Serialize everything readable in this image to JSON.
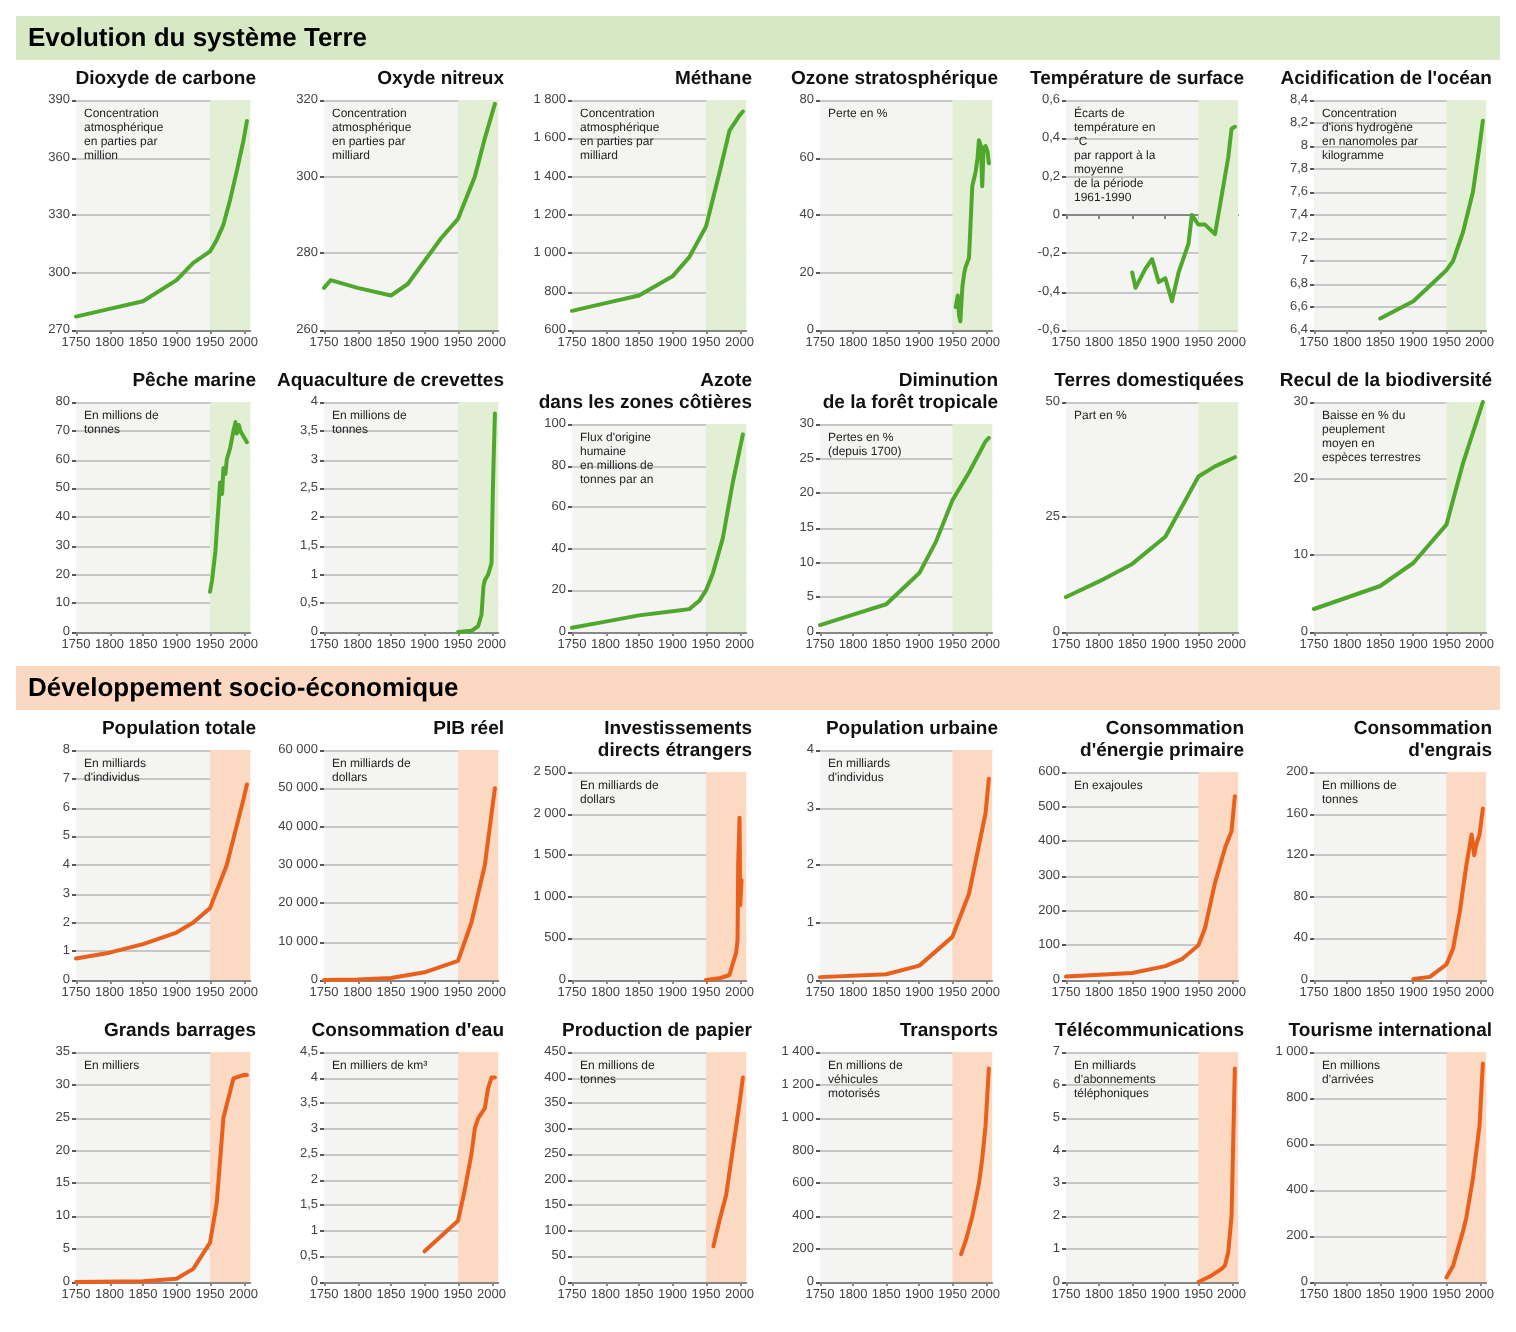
{
  "chart_data": [
    {
      "type": "other",
      "title": "Evolution du système Terre",
      "color": "#d6e8c4"
    },
    {
      "type": "line",
      "title": "Dioxyde de carbone",
      "subtitle": "Concentration atmosphérique\nen parties par million",
      "x": [
        1750,
        1800,
        1850,
        1900,
        1925,
        1950,
        1960,
        1970,
        1980,
        1990,
        2000,
        2005
      ],
      "values": [
        277,
        281,
        285,
        296,
        305,
        311,
        317,
        325,
        338,
        353,
        369,
        379
      ],
      "color": "#4fa82b",
      "xlim": [
        1750,
        2010
      ],
      "xticks": [
        1750,
        1800,
        1850,
        1900,
        1950,
        2000
      ],
      "ylim": [
        270,
        390
      ],
      "yticks": [
        270,
        300,
        330,
        360,
        390
      ],
      "grid": "y",
      "bands": [
        {
          "axis": "x",
          "from": 1950,
          "to": 2010,
          "color": "#e2efd5"
        }
      ]
    },
    {
      "type": "line",
      "title": "Oxyde nitreux",
      "subtitle": "Concentration atmosphérique\nen parties par milliard",
      "x": [
        1750,
        1760,
        1800,
        1850,
        1875,
        1900,
        1925,
        1950,
        1975,
        1990,
        2005
      ],
      "values": [
        271,
        273,
        271,
        269,
        272,
        278,
        284,
        289,
        300,
        310,
        319
      ],
      "color": "#4fa82b",
      "xlim": [
        1750,
        2010
      ],
      "xticks": [
        1750,
        1800,
        1850,
        1900,
        1950,
        2000
      ],
      "ylim": [
        260,
        320
      ],
      "yticks": [
        260,
        280,
        300,
        320
      ],
      "grid": "y",
      "bands": [
        {
          "axis": "x",
          "from": 1950,
          "to": 2010,
          "color": "#e2efd5"
        }
      ]
    },
    {
      "type": "line",
      "title": "Méthane",
      "subtitle": "Concentration atmosphérique\nen parties par milliard",
      "x": [
        1750,
        1800,
        1850,
        1900,
        1925,
        1950,
        1970,
        1985,
        2000,
        2005
      ],
      "values": [
        700,
        740,
        780,
        880,
        980,
        1140,
        1420,
        1640,
        1720,
        1740
      ],
      "color": "#4fa82b",
      "xlim": [
        1750,
        2010
      ],
      "xticks": [
        1750,
        1800,
        1850,
        1900,
        1950,
        2000
      ],
      "ylim": [
        600,
        1800
      ],
      "yticks": [
        600,
        800,
        {
          "value": 1000,
          "label": "1 000"
        },
        {
          "value": 1200,
          "label": "1 200"
        },
        {
          "value": 1400,
          "label": "1 400"
        },
        {
          "value": 1600,
          "label": "1 600"
        },
        {
          "value": 1800,
          "label": "1 800"
        }
      ],
      "grid": "y",
      "bands": [
        {
          "axis": "x",
          "from": 1950,
          "to": 2010,
          "color": "#e2efd5"
        }
      ]
    },
    {
      "type": "line",
      "title": "Ozone stratosphérique",
      "subtitle": "Perte en %",
      "x": [
        1955,
        1958,
        1960,
        1962,
        1965,
        1968,
        1970,
        1975,
        1980,
        1985,
        1988,
        1990,
        1993,
        1995,
        1997,
        2000,
        2003,
        2005
      ],
      "values": [
        8,
        12,
        5,
        3,
        15,
        20,
        22,
        25,
        50,
        55,
        60,
        66,
        64,
        50,
        63,
        64,
        62,
        58
      ],
      "color": "#4fa82b",
      "xlim": [
        1750,
        2010
      ],
      "xticks": [
        1750,
        1800,
        1850,
        1900,
        1950,
        2000
      ],
      "ylim": [
        0,
        80
      ],
      "yticks": [
        0,
        20,
        40,
        60,
        80
      ],
      "grid": "y",
      "bands": [
        {
          "axis": "x",
          "from": 1950,
          "to": 2010,
          "color": "#e2efd5"
        }
      ]
    },
    {
      "type": "line",
      "title": "Température de surface",
      "subtitle": "Écarts de température en °C\npar rapport à la moyenne\nde la période 1961-1990",
      "x": [
        1850,
        1855,
        1870,
        1880,
        1890,
        1900,
        1910,
        1920,
        1935,
        1940,
        1950,
        1960,
        1975,
        1985,
        1995,
        2000,
        2005
      ],
      "values": [
        -0.3,
        -0.38,
        -0.28,
        -0.23,
        -0.35,
        -0.33,
        -0.45,
        -0.3,
        -0.15,
        0,
        -0.05,
        -0.05,
        -0.1,
        0.1,
        0.3,
        0.45,
        0.46
      ],
      "color": "#4fa82b",
      "xlim": [
        1750,
        2010
      ],
      "xticks": [
        1750,
        1800,
        1850,
        1900,
        1950,
        2000
      ],
      "ylim": [
        -0.6,
        0.6
      ],
      "yticks": [
        {
          "value": -0.6,
          "label": "-0,6"
        },
        {
          "value": -0.4,
          "label": "-0,4"
        },
        {
          "value": -0.2,
          "label": "-0,2"
        },
        0,
        {
          "value": 0.2,
          "label": "0,2"
        },
        {
          "value": 0.4,
          "label": "0,4"
        },
        {
          "value": 0.6,
          "label": "0,6"
        }
      ],
      "grid": "y",
      "bands": [
        {
          "axis": "x",
          "from": 1950,
          "to": 2010,
          "color": "#e2efd5"
        }
      ]
    },
    {
      "type": "line",
      "title": "Acidification de l'océan",
      "subtitle": "Concentration d'ions hydrogène\nen nanomoles par kilogramme",
      "x": [
        1850,
        1900,
        1950,
        1960,
        1975,
        1990,
        2000,
        2005
      ],
      "values": [
        6.5,
        6.65,
        6.92,
        7.0,
        7.25,
        7.6,
        8.0,
        8.22
      ],
      "color": "#4fa82b",
      "xlim": [
        1750,
        2010
      ],
      "xticks": [
        1750,
        1800,
        1850,
        1900,
        1950,
        2000
      ],
      "ylim": [
        6.4,
        8.4
      ],
      "yticks": [
        {
          "value": 6.4,
          "label": "6,4"
        },
        {
          "value": 6.6,
          "label": "6,6"
        },
        {
          "value": 6.8,
          "label": "6,8"
        },
        7,
        {
          "value": 7.2,
          "label": "7,2"
        },
        {
          "value": 7.4,
          "label": "7,4"
        },
        {
          "value": 7.6,
          "label": "7,6"
        },
        {
          "value": 7.8,
          "label": "7,8"
        },
        8,
        {
          "value": 8.2,
          "label": "8,2"
        },
        {
          "value": 8.4,
          "label": "8,4"
        }
      ],
      "grid": "y",
      "bands": [
        {
          "axis": "x",
          "from": 1950,
          "to": 2010,
          "color": "#e2efd5"
        }
      ]
    },
    {
      "type": "line",
      "title": "Pêche marine",
      "subtitle": "En millions de tonnes",
      "x": [
        1950,
        1953,
        1955,
        1958,
        1960,
        1963,
        1965,
        1968,
        1970,
        1973,
        1975,
        1980,
        1985,
        1988,
        1990,
        1993,
        1995,
        2000,
        2005
      ],
      "values": [
        14,
        18,
        22,
        28,
        35,
        45,
        52,
        48,
        57,
        55,
        60,
        64,
        70,
        73,
        69,
        72,
        70,
        68,
        66
      ],
      "color": "#4fa82b",
      "xlim": [
        1750,
        2010
      ],
      "xticks": [
        1750,
        1800,
        1850,
        1900,
        1950,
        2000
      ],
      "ylim": [
        0,
        80
      ],
      "yticks": [
        0,
        10,
        20,
        30,
        40,
        50,
        60,
        70,
        80
      ],
      "grid": "y",
      "bands": [
        {
          "axis": "x",
          "from": 1950,
          "to": 2010,
          "color": "#e2efd5"
        }
      ]
    },
    {
      "type": "line",
      "title": "Aquaculture de crevettes",
      "subtitle": "En millions de tonnes",
      "x": [
        1950,
        1970,
        1980,
        1985,
        1988,
        1990,
        1995,
        2000,
        2002,
        2005
      ],
      "values": [
        0,
        0.02,
        0.1,
        0.3,
        0.8,
        0.9,
        1.0,
        1.2,
        2.5,
        3.8
      ],
      "color": "#4fa82b",
      "xlim": [
        1750,
        2010
      ],
      "xticks": [
        1750,
        1800,
        1850,
        1900,
        1950,
        2000
      ],
      "ylim": [
        0,
        4
      ],
      "yticks": [
        0,
        {
          "value": 0.5,
          "label": "0,5"
        },
        1,
        {
          "value": 1.5,
          "label": "1,5"
        },
        2,
        {
          "value": 2.5,
          "label": "2,5"
        },
        3,
        {
          "value": 3.5,
          "label": "3,5"
        },
        4
      ],
      "grid": "y",
      "bands": [
        {
          "axis": "x",
          "from": 1950,
          "to": 2010,
          "color": "#e2efd5"
        }
      ]
    },
    {
      "type": "line",
      "title": "Azote\ndans les zones côtières",
      "subtitle": "Flux d'origine humaine\nen millions de tonnes par an",
      "x": [
        1750,
        1800,
        1850,
        1900,
        1925,
        1940,
        1950,
        1960,
        1975,
        1990,
        2005
      ],
      "values": [
        2,
        5,
        8,
        10,
        11,
        15,
        20,
        28,
        45,
        72,
        95
      ],
      "color": "#4fa82b",
      "xlim": [
        1750,
        2010
      ],
      "xticks": [
        1750,
        1800,
        1850,
        1900,
        1950,
        2000
      ],
      "ylim": [
        0,
        100
      ],
      "yticks": [
        0,
        20,
        40,
        60,
        80,
        100
      ],
      "grid": "y",
      "bands": [
        {
          "axis": "x",
          "from": 1950,
          "to": 2010,
          "color": "#e2efd5"
        }
      ]
    },
    {
      "type": "line",
      "title": "Diminution\nde la forêt tropicale",
      "subtitle": "Pertes en % (depuis 1700)",
      "x": [
        1750,
        1800,
        1850,
        1900,
        1925,
        1950,
        1975,
        2000,
        2005
      ],
      "values": [
        1,
        2.5,
        4,
        8.5,
        13,
        19,
        23,
        27.5,
        28
      ],
      "color": "#4fa82b",
      "xlim": [
        1750,
        2010
      ],
      "xticks": [
        1750,
        1800,
        1850,
        1900,
        1950,
        2000
      ],
      "ylim": [
        0,
        30
      ],
      "yticks": [
        0,
        5,
        10,
        15,
        20,
        25,
        30
      ],
      "grid": "y",
      "bands": [
        {
          "axis": "x",
          "from": 1950,
          "to": 2010,
          "color": "#e2efd5"
        }
      ]
    },
    {
      "type": "line",
      "title": "Terres domestiquées",
      "subtitle": "Part en %",
      "x": [
        1750,
        1800,
        1850,
        1900,
        1950,
        1975,
        2005
      ],
      "values": [
        7.6,
        11,
        14.8,
        20.7,
        33.8,
        36,
        38
      ],
      "color": "#4fa82b",
      "xlim": [
        1750,
        2010
      ],
      "xticks": [
        1750,
        1800,
        1850,
        1900,
        1950,
        2000
      ],
      "ylim": [
        0,
        50
      ],
      "yticks": [
        0,
        25,
        50
      ],
      "grid": "y",
      "bands": [
        {
          "axis": "x",
          "from": 1950,
          "to": 2010,
          "color": "#e2efd5"
        }
      ]
    },
    {
      "type": "line",
      "title": "Recul de la biodiversité",
      "subtitle": "Baisse en % du peuplement\nmoyen en espèces terrestres",
      "x": [
        1750,
        1800,
        1850,
        1900,
        1950,
        1975,
        2005
      ],
      "values": [
        3,
        4.5,
        6,
        9,
        14,
        22,
        30
      ],
      "color": "#4fa82b",
      "xlim": [
        1750,
        2010
      ],
      "xticks": [
        1750,
        1800,
        1850,
        1900,
        1950,
        2000
      ],
      "ylim": [
        0,
        30
      ],
      "yticks": [
        0,
        10,
        20,
        30
      ],
      "grid": "y",
      "bands": [
        {
          "axis": "x",
          "from": 1950,
          "to": 2010,
          "color": "#e2efd5"
        }
      ]
    },
    {
      "type": "other",
      "title": "Développement socio-économique",
      "color": "#fbd8c2"
    },
    {
      "type": "line",
      "title": "Population totale",
      "subtitle": "En milliards d'individus",
      "x": [
        1750,
        1800,
        1850,
        1900,
        1925,
        1950,
        1975,
        2000,
        2005
      ],
      "values": [
        0.75,
        0.95,
        1.25,
        1.65,
        2.0,
        2.5,
        4.0,
        6.3,
        6.8
      ],
      "color": "#e8601c",
      "xlim": [
        1750,
        2010
      ],
      "xticks": [
        1750,
        1800,
        1850,
        1900,
        1950,
        2000
      ],
      "ylim": [
        0,
        8
      ],
      "yticks": [
        0,
        1,
        2,
        3,
        4,
        5,
        6,
        7,
        8
      ],
      "grid": "y",
      "bands": [
        {
          "axis": "x",
          "from": 1950,
          "to": 2010,
          "color": "#fbd9c3"
        }
      ]
    },
    {
      "type": "line",
      "title": "PIB réel",
      "subtitle": "En milliards de dollars",
      "x": [
        1750,
        1800,
        1850,
        1900,
        1950,
        1970,
        1990,
        2005
      ],
      "values": [
        0,
        100,
        500,
        2000,
        5000,
        15000,
        30000,
        50000
      ],
      "color": "#e8601c",
      "xlim": [
        1750,
        2010
      ],
      "xticks": [
        1750,
        1800,
        1850,
        1900,
        1950,
        2000
      ],
      "ylim": [
        0,
        60000
      ],
      "yticks": [
        0,
        {
          "value": 10000,
          "label": "10 000"
        },
        {
          "value": 20000,
          "label": "20 000"
        },
        {
          "value": 30000,
          "label": "30 000"
        },
        {
          "value": 40000,
          "label": "40 000"
        },
        {
          "value": 50000,
          "label": "50 000"
        },
        {
          "value": 60000,
          "label": "60 000"
        }
      ],
      "grid": "y",
      "bands": [
        {
          "axis": "x",
          "from": 1950,
          "to": 2010,
          "color": "#fbd9c3"
        }
      ]
    },
    {
      "type": "line",
      "title": "Investissements\ndirects étrangers",
      "subtitle": "En milliards de dollars",
      "x": [
        1950,
        1970,
        1985,
        1990,
        1995,
        1997,
        1998,
        2000,
        2001,
        2003
      ],
      "values": [
        0,
        20,
        60,
        200,
        330,
        480,
        1400,
        1950,
        900,
        1200
      ],
      "color": "#e8601c",
      "xlim": [
        1750,
        2010
      ],
      "xticks": [
        1750,
        1800,
        1850,
        1900,
        1950,
        2000
      ],
      "ylim": [
        0,
        2500
      ],
      "yticks": [
        0,
        500,
        {
          "value": 1000,
          "label": "1 000"
        },
        {
          "value": 1500,
          "label": "1 500"
        },
        {
          "value": 2000,
          "label": "2 000"
        },
        {
          "value": 2500,
          "label": "2 500"
        }
      ],
      "grid": "y",
      "bands": [
        {
          "axis": "x",
          "from": 1950,
          "to": 2010,
          "color": "#fbd9c3"
        }
      ]
    },
    {
      "type": "line",
      "title": "Population urbaine",
      "subtitle": "En milliards d'individus",
      "x": [
        1750,
        1850,
        1900,
        1950,
        1975,
        2000,
        2005
      ],
      "values": [
        0.05,
        0.1,
        0.25,
        0.75,
        1.5,
        2.9,
        3.5
      ],
      "color": "#e8601c",
      "xlim": [
        1750,
        2010
      ],
      "xticks": [
        1750,
        1800,
        1850,
        1900,
        1950,
        2000
      ],
      "ylim": [
        0,
        4
      ],
      "yticks": [
        0,
        1,
        2,
        3,
        4
      ],
      "grid": "y",
      "bands": [
        {
          "axis": "x",
          "from": 1950,
          "to": 2010,
          "color": "#fbd9c3"
        }
      ]
    },
    {
      "type": "line",
      "title": "Consommation\nd'énergie primaire",
      "subtitle": "En exajoules",
      "x": [
        1750,
        1850,
        1900,
        1925,
        1950,
        1960,
        1975,
        1990,
        2000,
        2005
      ],
      "values": [
        10,
        20,
        40,
        60,
        100,
        150,
        280,
        380,
        430,
        530
      ],
      "color": "#e8601c",
      "xlim": [
        1750,
        2010
      ],
      "xticks": [
        1750,
        1800,
        1850,
        1900,
        1950,
        2000
      ],
      "ylim": [
        0,
        600
      ],
      "yticks": [
        0,
        100,
        200,
        300,
        400,
        500,
        600
      ],
      "grid": "y",
      "bands": [
        {
          "axis": "x",
          "from": 1950,
          "to": 2010,
          "color": "#fbd9c3"
        }
      ]
    },
    {
      "type": "line",
      "title": "Consommation\nd'engrais",
      "subtitle": "En millions de tonnes",
      "x": [
        1900,
        1925,
        1950,
        1960,
        1970,
        1980,
        1988,
        1992,
        1995,
        2000,
        2005
      ],
      "values": [
        1,
        3,
        15,
        30,
        65,
        110,
        140,
        120,
        130,
        140,
        165
      ],
      "color": "#e8601c",
      "xlim": [
        1750,
        2010
      ],
      "xticks": [
        1750,
        1800,
        1850,
        1900,
        1950,
        2000
      ],
      "ylim": [
        0,
        200
      ],
      "yticks": [
        0,
        40,
        80,
        120,
        160,
        200
      ],
      "grid": "y",
      "bands": [
        {
          "axis": "x",
          "from": 1950,
          "to": 2010,
          "color": "#fbd9c3"
        }
      ]
    },
    {
      "type": "line",
      "title": "Grands barrages",
      "subtitle": "En milliers",
      "x": [
        1750,
        1850,
        1900,
        1925,
        1950,
        1960,
        1970,
        1985,
        2000,
        2005
      ],
      "values": [
        0,
        0.1,
        0.5,
        2,
        6,
        12,
        25,
        31,
        31.5,
        31.5
      ],
      "color": "#e8601c",
      "xlim": [
        1750,
        2010
      ],
      "xticks": [
        1750,
        1800,
        1850,
        1900,
        1950,
        2000
      ],
      "ylim": [
        0,
        35
      ],
      "yticks": [
        0,
        5,
        10,
        15,
        20,
        25,
        30,
        35
      ],
      "grid": "y",
      "bands": [
        {
          "axis": "x",
          "from": 1950,
          "to": 2010,
          "color": "#fbd9c3"
        }
      ]
    },
    {
      "type": "line",
      "title": "Consommation d'eau",
      "subtitle": "En milliers de km³",
      "x": [
        1900,
        1925,
        1950,
        1960,
        1970,
        1975,
        1980,
        1990,
        1995,
        2000,
        2005
      ],
      "values": [
        0.6,
        0.9,
        1.2,
        1.8,
        2.5,
        3.0,
        3.2,
        3.4,
        3.8,
        4.0,
        4.0
      ],
      "color": "#e8601c",
      "xlim": [
        1750,
        2010
      ],
      "xticks": [
        1750,
        1800,
        1850,
        1900,
        1950,
        2000
      ],
      "ylim": [
        0,
        4.5
      ],
      "yticks": [
        0,
        {
          "value": 0.5,
          "label": "0,5"
        },
        1,
        {
          "value": 1.5,
          "label": "1,5"
        },
        2,
        {
          "value": 2.5,
          "label": "2,5"
        },
        3,
        {
          "value": 3.5,
          "label": "3,5"
        },
        4,
        {
          "value": 4.5,
          "label": "4,5"
        }
      ],
      "grid": "y",
      "bands": [
        {
          "axis": "x",
          "from": 1950,
          "to": 2010,
          "color": "#fbd9c3"
        }
      ]
    },
    {
      "type": "line",
      "title": "Production de papier",
      "subtitle": "En millions de tonnes",
      "x": [
        1961,
        1970,
        1980,
        1990,
        2000,
        2005
      ],
      "values": [
        70,
        120,
        170,
        260,
        350,
        400
      ],
      "color": "#e8601c",
      "xlim": [
        1750,
        2010
      ],
      "xticks": [
        1750,
        1800,
        1850,
        1900,
        1950,
        2000
      ],
      "ylim": [
        0,
        450
      ],
      "yticks": [
        0,
        50,
        100,
        150,
        200,
        250,
        300,
        350,
        400,
        450
      ],
      "grid": "y",
      "bands": [
        {
          "axis": "x",
          "from": 1950,
          "to": 2010,
          "color": "#fbd9c3"
        }
      ]
    },
    {
      "type": "line",
      "title": "Transports",
      "subtitle": "En millions de véhicules motorisés",
      "x": [
        1963,
        1970,
        1980,
        1990,
        1995,
        2000,
        2005
      ],
      "values": [
        170,
        250,
        400,
        600,
        750,
        950,
        1300
      ],
      "color": "#e8601c",
      "xlim": [
        1750,
        2010
      ],
      "xticks": [
        1750,
        1800,
        1850,
        1900,
        1950,
        2000
      ],
      "ylim": [
        0,
        1400
      ],
      "yticks": [
        0,
        200,
        400,
        600,
        800,
        {
          "value": 1000,
          "label": "1 000"
        },
        {
          "value": 1200,
          "label": "1 200"
        },
        {
          "value": 1400,
          "label": "1 400"
        }
      ],
      "grid": "y",
      "bands": [
        {
          "axis": "x",
          "from": 1950,
          "to": 2010,
          "color": "#fbd9c3"
        }
      ]
    },
    {
      "type": "line",
      "title": "Télécommunications",
      "subtitle": "En milliards\nd'abonnements téléphoniques",
      "x": [
        1950,
        1970,
        1985,
        1990,
        1995,
        2000,
        2005
      ],
      "values": [
        0,
        0.2,
        0.4,
        0.5,
        0.9,
        2,
        6.5
      ],
      "color": "#e8601c",
      "xlim": [
        1750,
        2010
      ],
      "xticks": [
        1750,
        1800,
        1850,
        1900,
        1950,
        2000
      ],
      "ylim": [
        0,
        7
      ],
      "yticks": [
        0,
        1,
        2,
        3,
        4,
        5,
        6,
        7
      ],
      "grid": "y",
      "bands": [
        {
          "axis": "x",
          "from": 1950,
          "to": 2010,
          "color": "#fbd9c3"
        }
      ]
    },
    {
      "type": "line",
      "title": "Tourisme international",
      "subtitle": "En millions d'arrivées",
      "x": [
        1950,
        1960,
        1975,
        1980,
        1990,
        2000,
        2005
      ],
      "values": [
        20,
        70,
        220,
        280,
        450,
        680,
        950
      ],
      "color": "#e8601c",
      "xlim": [
        1750,
        2010
      ],
      "xticks": [
        1750,
        1800,
        1850,
        1900,
        1950,
        2000
      ],
      "ylim": [
        0,
        1000
      ],
      "yticks": [
        0,
        200,
        400,
        600,
        800,
        {
          "value": 1000,
          "label": "1 000"
        }
      ],
      "grid": "y",
      "bands": [
        {
          "axis": "x",
          "from": 1950,
          "to": 2010,
          "color": "#fbd9c3"
        }
      ]
    }
  ]
}
